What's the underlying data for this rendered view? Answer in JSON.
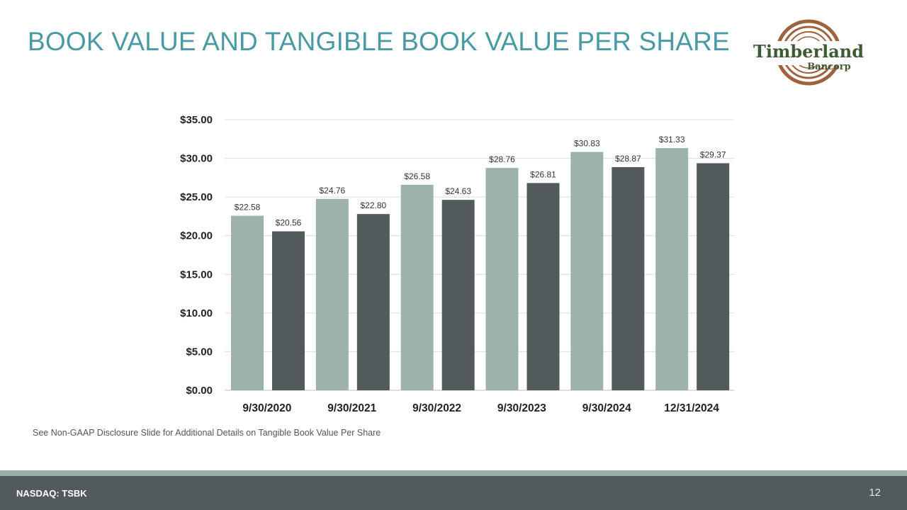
{
  "title": "BOOK VALUE AND TANGIBLE BOOK VALUE PER SHARE",
  "logo": {
    "name": "Timberland",
    "sub": "Bancorp"
  },
  "colors": {
    "title": "#4a9aa4",
    "book_value": "#9db2ad",
    "tangible_book_value": "#525a5b",
    "footer": "#525a5b",
    "footer_band": "#9aaeaa"
  },
  "chart_data": {
    "type": "bar",
    "categories": [
      "9/30/2020",
      "9/30/2021",
      "9/30/2022",
      "9/30/2023",
      "9/30/2024",
      "12/31/2024"
    ],
    "series": [
      {
        "values": [
          22.58,
          24.76,
          26.58,
          28.76,
          30.83,
          31.33
        ],
        "labels": [
          "$22.58",
          "$24.76",
          "$26.58",
          "$28.76",
          "$30.83",
          "$31.33"
        ]
      },
      {
        "values": [
          20.56,
          22.8,
          24.63,
          26.81,
          28.87,
          29.37
        ],
        "labels": [
          "$20.56",
          "$22.80",
          "$24.63",
          "$26.81",
          "$28.87",
          "$29.37"
        ]
      }
    ],
    "ylim": [
      0,
      35
    ],
    "yticks": [
      "$0.00",
      "$5.00",
      "$10.00",
      "$15.00",
      "$20.00",
      "$25.00",
      "$30.00",
      "$35.00"
    ],
    "grid": true,
    "legend": "none"
  },
  "note": "See Non-GAAP Disclosure Slide for Additional Details on Tangible Book Value Per Share",
  "footer": {
    "ticker": "NASDAQ: TSBK",
    "page": "12"
  }
}
